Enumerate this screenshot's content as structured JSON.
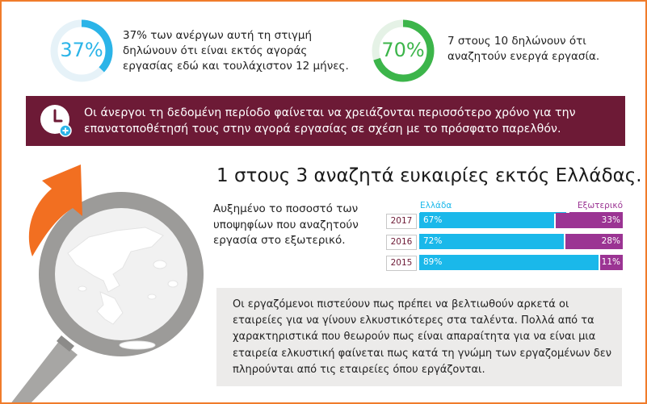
{
  "stats": [
    {
      "percent": 37,
      "percent_label": "37%",
      "color": "#2bb4e8",
      "text": "37% των ανέργων αυτή τη στιγμή δηλώνουν ότι είναι εκτός αγοράς εργασίας εδώ και τουλάχιστον 12 μήνες."
    },
    {
      "percent": 70,
      "percent_label": "70%",
      "color": "#3cb54a",
      "text": "7 στους 10 δηλώνουν ότι αναζητούν ενεργά εργασία."
    }
  ],
  "banner": {
    "color": "#6d1a36",
    "icon": "clock-plus-icon",
    "text": "Οι άνεργοι τη δεδομένη περίοδο φαίνεται να χρειάζονται περισσότερο χρόνο για την επανατοποθέτησή τους στην αγορά εργασίας σε σχέση με το πρόσφατο παρελθόν."
  },
  "illustration": {
    "icons": [
      "magnifier-icon",
      "greece-map-icon",
      "orange-arrow-icon"
    ]
  },
  "headline": "1 στους 3 αναζητά ευκαιρίες εκτός Ελλάδας.",
  "side_text": "Αυξημένο το ποσοστό των υποψηφίων που αναζητούν εργασία στο εξωτερικό.",
  "chart_data": {
    "type": "bar",
    "stacked": true,
    "orientation": "horizontal",
    "categories": [
      "2017",
      "2016",
      "2015"
    ],
    "series": [
      {
        "name": "Ελλάδα",
        "values": [
          67,
          72,
          89
        ],
        "labels": [
          "67%",
          "72%",
          "89%"
        ],
        "color": "#1ab8ea"
      },
      {
        "name": "Εξωτερικό",
        "values": [
          33,
          28,
          11
        ],
        "labels": [
          "33%",
          "28%",
          "11%"
        ],
        "color": "#9b3493"
      }
    ],
    "xlim": [
      0,
      100
    ]
  },
  "quote": "Οι εργαζόμενοι πιστεύουν πως πρέπει να βελτιωθούν αρκετά οι εταιρείες για να γίνουν ελκυστικότερες στα ταλέντα. Πολλά από τα χαρακτηριστικά που θεωρούν πως είναι απαραίτητα για να είναι μια εταιρεία ελκυστική φαίνεται πως κατά τη γνώμη των εργαζομένων δεν πληρούνται από τις εταιρείες όπου εργάζονται."
}
